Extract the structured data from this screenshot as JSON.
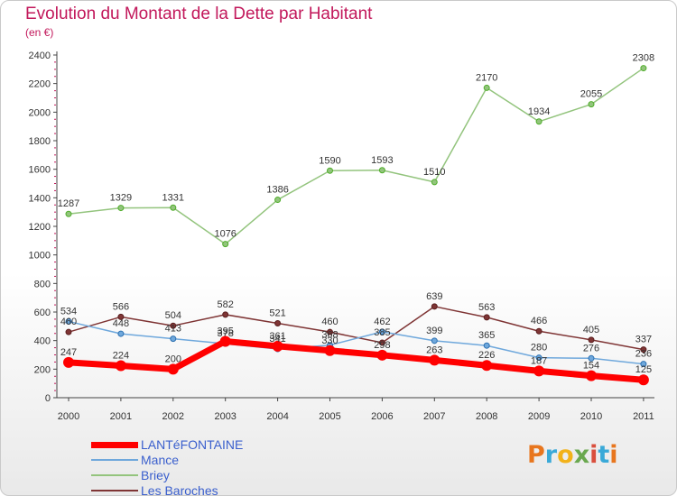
{
  "title": "Evolution du Montant de la Dette par Habitant",
  "subtitle": "(en €)",
  "logo": {
    "text": "Proxiti",
    "colors": [
      "#e8761e",
      "#3aa9d8",
      "#f2b21a",
      "#6aa84f",
      "#d94f3d",
      "#3aa9d8",
      "#e8761e"
    ]
  },
  "chart_data": {
    "type": "line",
    "title": "Evolution du Montant de la Dette par Habitant",
    "subtitle": "(en €)",
    "xlabel": "",
    "ylabel": "",
    "x": [
      "2000",
      "2001",
      "2002",
      "2003",
      "2004",
      "2005",
      "2006",
      "2007",
      "2008",
      "2009",
      "2010",
      "2011"
    ],
    "ylim": [
      0,
      2400
    ],
    "yticks": [
      0,
      200,
      400,
      600,
      800,
      1000,
      1200,
      1400,
      1600,
      1800,
      2000,
      2200,
      2400
    ],
    "grid": false,
    "legend_position": "bottom-left",
    "series": [
      {
        "name": "LANTéFONTAINE",
        "color": "#ff0000",
        "values": [
          247,
          224,
          200,
          395,
          361,
          330,
          298,
          263,
          226,
          187,
          154,
          125
        ]
      },
      {
        "name": "Mance",
        "color": "#6fa8dc",
        "values": [
          534,
          448,
          413,
          378,
          341,
          368,
          462,
          399,
          365,
          280,
          276,
          236
        ]
      },
      {
        "name": "Briey",
        "color": "#93c47d",
        "values": [
          1287,
          1329,
          1331,
          1076,
          1386,
          1590,
          1593,
          1510,
          2170,
          1934,
          2055,
          2308
        ]
      },
      {
        "name": "Les Baroches",
        "color": "#7f3535",
        "values": [
          460,
          566,
          504,
          582,
          521,
          460,
          385,
          639,
          563,
          466,
          405,
          337
        ]
      }
    ]
  }
}
